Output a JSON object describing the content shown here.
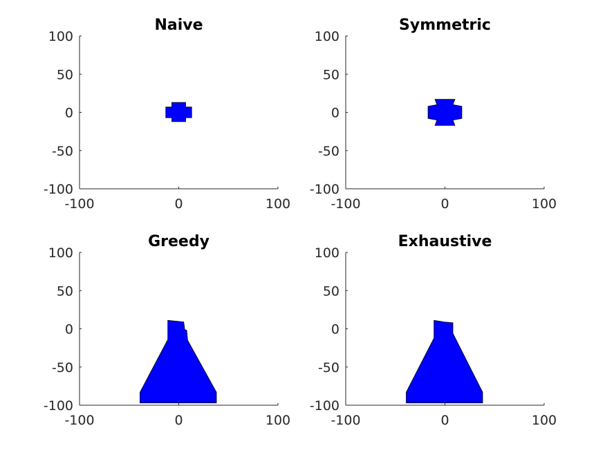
{
  "chart_data": [
    {
      "type": "area",
      "title": "Naive",
      "xlabel": "",
      "ylabel": "",
      "xlim": [
        -100,
        100
      ],
      "ylim": [
        -100,
        100
      ],
      "xticks": [
        -100,
        0,
        100
      ],
      "yticks": [
        -100,
        -50,
        0,
        50,
        100
      ],
      "xtick_labels": [
        "-100",
        "0",
        "100"
      ],
      "ytick_labels": [
        "-100",
        "-50",
        "0",
        "50",
        "100"
      ],
      "grid": false,
      "fill_color": "#0000ff",
      "edge_color": "#000000",
      "polygons": [
        [
          [
            -7,
            -12
          ],
          [
            7,
            -12
          ],
          [
            7,
            -7
          ],
          [
            13,
            -7
          ],
          [
            13,
            7
          ],
          [
            7,
            7
          ],
          [
            7,
            13
          ],
          [
            -7,
            13
          ],
          [
            -7,
            7
          ],
          [
            -13,
            7
          ],
          [
            -13,
            -7
          ],
          [
            -7,
            -7
          ]
        ]
      ]
    },
    {
      "type": "area",
      "title": "Symmetric",
      "xlabel": "",
      "ylabel": "",
      "xlim": [
        -100,
        100
      ],
      "ylim": [
        -100,
        100
      ],
      "xticks": [
        -100,
        0,
        100
      ],
      "yticks": [
        -100,
        -50,
        0,
        50,
        100
      ],
      "xtick_labels": [
        "-100",
        "0",
        "100"
      ],
      "ytick_labels": [
        "-100",
        "-50",
        "0",
        "50",
        "100"
      ],
      "grid": false,
      "fill_color": "#0000ff",
      "edge_color": "#000000",
      "polygons": [
        [
          [
            -10,
            -17
          ],
          [
            10,
            -17
          ],
          [
            8,
            -10
          ],
          [
            17,
            -8
          ],
          [
            17,
            8
          ],
          [
            8,
            10
          ],
          [
            10,
            17
          ],
          [
            -10,
            17
          ],
          [
            -8,
            10
          ],
          [
            -17,
            8
          ],
          [
            -17,
            -8
          ],
          [
            -8,
            -10
          ]
        ]
      ]
    },
    {
      "type": "area",
      "title": "Greedy",
      "xlabel": "",
      "ylabel": "",
      "xlim": [
        -100,
        100
      ],
      "ylim": [
        -100,
        100
      ],
      "xticks": [
        -100,
        0,
        100
      ],
      "yticks": [
        -100,
        -50,
        0,
        50,
        100
      ],
      "xtick_labels": [
        "-100",
        "0",
        "100"
      ],
      "ytick_labels": [
        "-100",
        "-50",
        "0",
        "50",
        "100"
      ],
      "grid": false,
      "fill_color": "#0000ff",
      "edge_color": "#000000",
      "polygons": [
        [
          [
            -11,
            11
          ],
          [
            5,
            9
          ],
          [
            6,
            -1
          ],
          [
            8,
            -2
          ],
          [
            9,
            -15
          ],
          [
            38,
            -83
          ],
          [
            38,
            -90
          ],
          [
            38,
            -97
          ],
          [
            -39,
            -97
          ],
          [
            -39,
            -90
          ],
          [
            -39,
            -83
          ],
          [
            -11,
            -14
          ],
          [
            -11,
            -2
          ]
        ]
      ]
    },
    {
      "type": "area",
      "title": "Exhaustive",
      "xlabel": "",
      "ylabel": "",
      "xlim": [
        -100,
        100
      ],
      "ylim": [
        -100,
        100
      ],
      "xticks": [
        -100,
        0,
        100
      ],
      "yticks": [
        -100,
        -50,
        0,
        50,
        100
      ],
      "xtick_labels": [
        "-100",
        "0",
        "100"
      ],
      "ytick_labels": [
        "-100",
        "-50",
        "0",
        "50",
        "100"
      ],
      "grid": false,
      "fill_color": "#0000ff",
      "edge_color": "#000000",
      "polygons": [
        [
          [
            -11,
            11
          ],
          [
            -1,
            9
          ],
          [
            8,
            8
          ],
          [
            8,
            -6
          ],
          [
            38,
            -83
          ],
          [
            38,
            -90
          ],
          [
            38,
            -97
          ],
          [
            -39,
            -97
          ],
          [
            -39,
            -90
          ],
          [
            -39,
            -83
          ],
          [
            -11,
            -12
          ]
        ]
      ]
    }
  ]
}
